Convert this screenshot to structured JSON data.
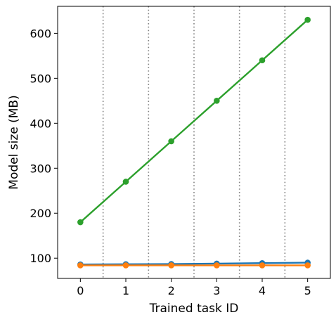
{
  "chart_data": {
    "type": "line",
    "title": "",
    "xlabel": "Trained task ID",
    "ylabel": "Model size (MB)",
    "x": [
      0,
      1,
      2,
      3,
      4,
      5
    ],
    "xlim": [
      -0.5,
      5.5
    ],
    "ylim": [
      55,
      660
    ],
    "xticks": [
      0,
      1,
      2,
      3,
      4,
      5
    ],
    "yticks": [
      100,
      200,
      300,
      400,
      500,
      600
    ],
    "grid": false,
    "task_boundaries": [
      0.5,
      1.5,
      2.5,
      3.5,
      4.5
    ],
    "series": [
      {
        "values": [
          86,
          86.5,
          87,
          88,
          89,
          90
        ],
        "color": "#1f77b4"
      },
      {
        "values": [
          84,
          84,
          84,
          84,
          84,
          84
        ],
        "color": "#ff7f0e"
      },
      {
        "values": [
          180,
          270,
          360,
          450,
          540,
          630
        ],
        "color": "#2ca02c"
      }
    ]
  }
}
